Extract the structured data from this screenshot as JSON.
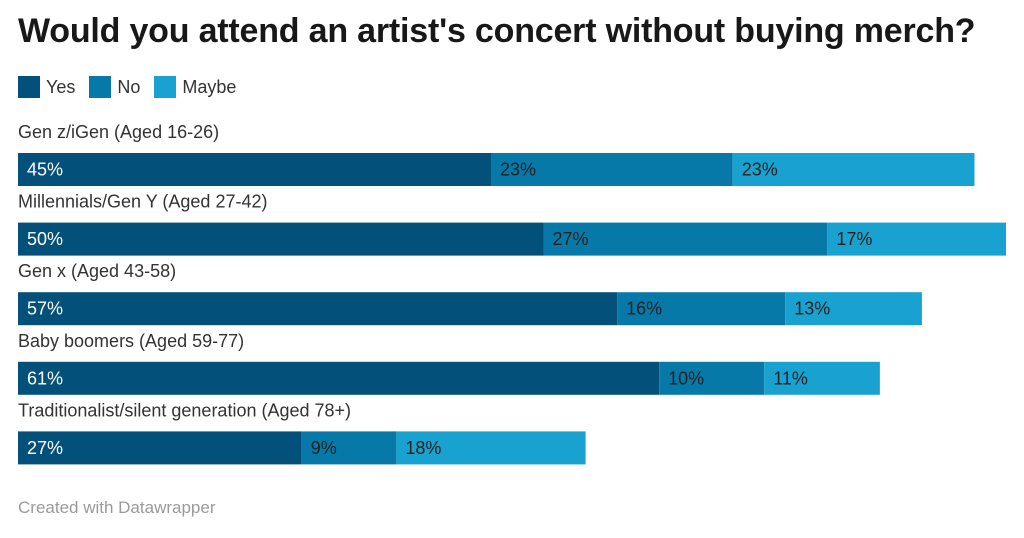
{
  "chart_data": {
    "type": "bar",
    "orientation": "horizontal",
    "stacked": true,
    "title": "Would you attend an artist's concert without buying merch?",
    "categories": [
      "Gen z/iGen (Aged 16-26)",
      "Millennials/Gen Y (Aged 27-42)",
      "Gen x (Aged 43-58)",
      "Baby boomers (Aged 59-77)",
      "Traditionalist/silent generation (Aged 78+)"
    ],
    "series": [
      {
        "name": "Yes",
        "color": "#03517b",
        "values": [
          45,
          50,
          57,
          61,
          27
        ]
      },
      {
        "name": "No",
        "color": "#0779a8",
        "values": [
          23,
          27,
          16,
          10,
          9
        ]
      },
      {
        "name": "Maybe",
        "color": "#19a1d0",
        "values": [
          23,
          17,
          13,
          11,
          18
        ]
      }
    ],
    "value_suffix": "%",
    "xlim": [
      0,
      94
    ],
    "legend_position": "top-left",
    "grid": false
  },
  "footer": "Created with Datawrapper"
}
